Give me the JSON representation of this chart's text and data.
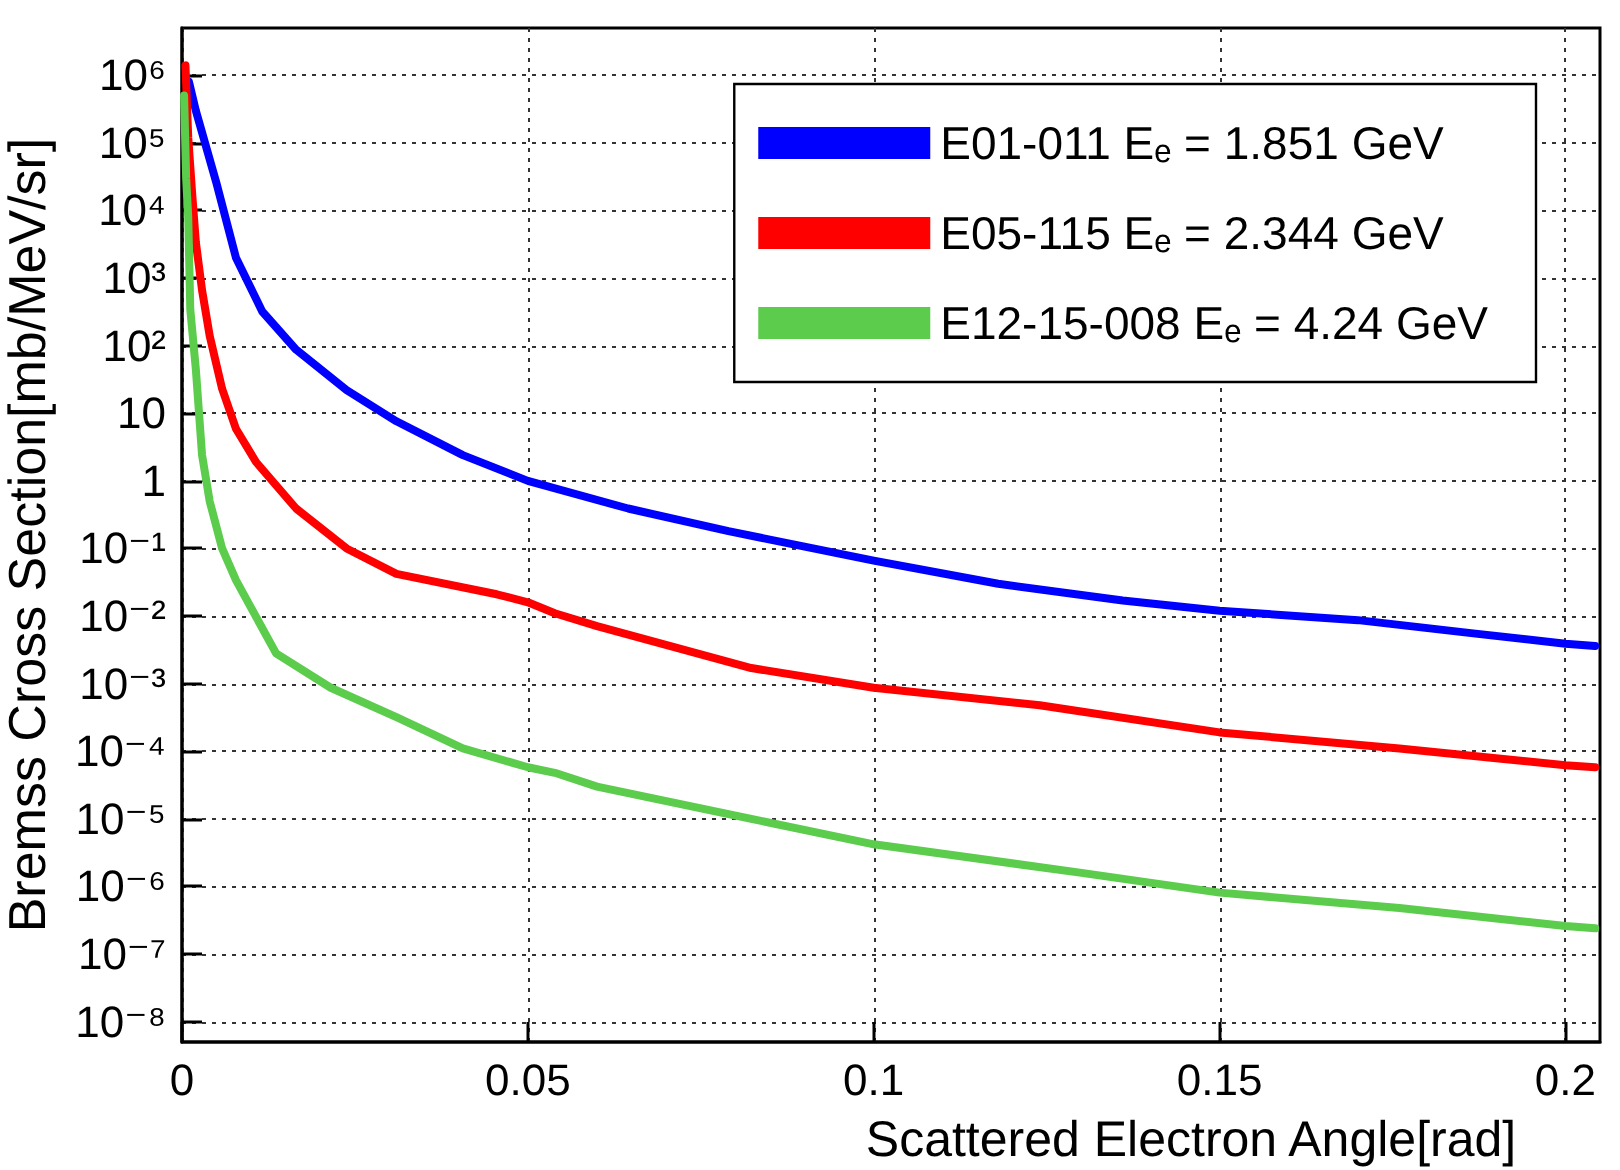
{
  "chart_data": {
    "type": "line",
    "xlabel": "Scattered Electron Angle[rad]",
    "ylabel": "Bremss Cross Section[mb/MeV/sr]",
    "log": "y",
    "grid": true,
    "legend": "top right",
    "marker": "none",
    "line_style": "solid",
    "xlim": [
      0,
      0.205
    ],
    "xticks": [
      0,
      0.05,
      0.1,
      0.15,
      0.2
    ],
    "ylim": [
      5e-09,
      5000000.0
    ],
    "yticks": [
      {
        "value": 1e-08,
        "label": "10⁻⁸"
      },
      {
        "value": 1e-07,
        "label": "10⁻⁷"
      },
      {
        "value": 1e-06,
        "label": "10⁻⁶"
      },
      {
        "value": 1e-05,
        "label": "10⁻⁵"
      },
      {
        "value": 0.0001,
        "label": "10⁻⁴"
      },
      {
        "value": 0.001,
        "label": "10⁻³"
      },
      {
        "value": 0.01,
        "label": "10⁻²"
      },
      {
        "value": 0.1,
        "label": "10⁻¹"
      },
      1,
      10,
      {
        "value": 100,
        "label": "10²"
      },
      {
        "value": 1000,
        "label": "10³"
      },
      {
        "value": 10000,
        "label": "10⁴"
      },
      {
        "value": 100000,
        "label": "10⁵"
      },
      {
        "value": 1000000,
        "label": "10⁶"
      }
    ],
    "series": [
      {
        "name": "E01-011 Eₑ = 1.851 GeV",
        "color": "#0000ff",
        "x": [
          0.001,
          0.002,
          0.005,
          0.0078,
          0.0116,
          0.0165,
          0.0238,
          0.031,
          0.0406,
          0.05,
          0.0645,
          0.079,
          0.1,
          0.118,
          0.136,
          0.15,
          0.17,
          0.187,
          0.2,
          0.2043
        ],
        "values": [
          800000,
          300000,
          25000,
          2000,
          320,
          87,
          22,
          7.6,
          2.4,
          1.0,
          0.39,
          0.18,
          0.066,
          0.03,
          0.017,
          0.012,
          0.0087,
          0.0055,
          0.0039,
          0.0036
        ]
      },
      {
        "name": "E05-115 Eₑ = 2.344 GeV",
        "color": "#ff0000",
        "x": [
          0.0005,
          0.0009,
          0.0015,
          0.002,
          0.0029,
          0.004,
          0.0058,
          0.0078,
          0.0107,
          0.0165,
          0.0238,
          0.031,
          0.0455,
          0.05,
          0.0539,
          0.06,
          0.0823,
          0.1,
          0.124,
          0.15,
          0.176,
          0.2,
          0.2043
        ],
        "values": [
          1400000,
          120000,
          16000,
          3400,
          660,
          140,
          23,
          5.9,
          1.9,
          0.39,
          0.1,
          0.042,
          0.021,
          0.016,
          0.011,
          0.0071,
          0.0017,
          0.00087,
          0.00048,
          0.00019,
          0.00011,
          6.2e-05,
          5.8e-05
        ]
      },
      {
        "name": "E12-15-008 Eₑ = 4.24 GeV",
        "color": "#5ccc4c",
        "x": [
          0.0003,
          0.0006,
          0.0009,
          0.0012,
          0.002,
          0.0029,
          0.004,
          0.0058,
          0.0078,
          0.0136,
          0.0215,
          0.031,
          0.0406,
          0.05,
          0.0539,
          0.06,
          0.0823,
          0.1,
          0.1298,
          0.15,
          0.176,
          0.2,
          0.2043
        ],
        "values": [
          500000,
          30000,
          8000,
          340,
          45,
          2.4,
          0.5,
          0.1,
          0.034,
          0.0028,
          0.00087,
          0.00032,
          0.00011,
          5.8e-05,
          4.8e-05,
          3e-05,
          1e-05,
          4.2e-06,
          1.6e-06,
          8.1e-07,
          4.8e-07,
          2.6e-07,
          2.4e-07
        ]
      }
    ]
  }
}
